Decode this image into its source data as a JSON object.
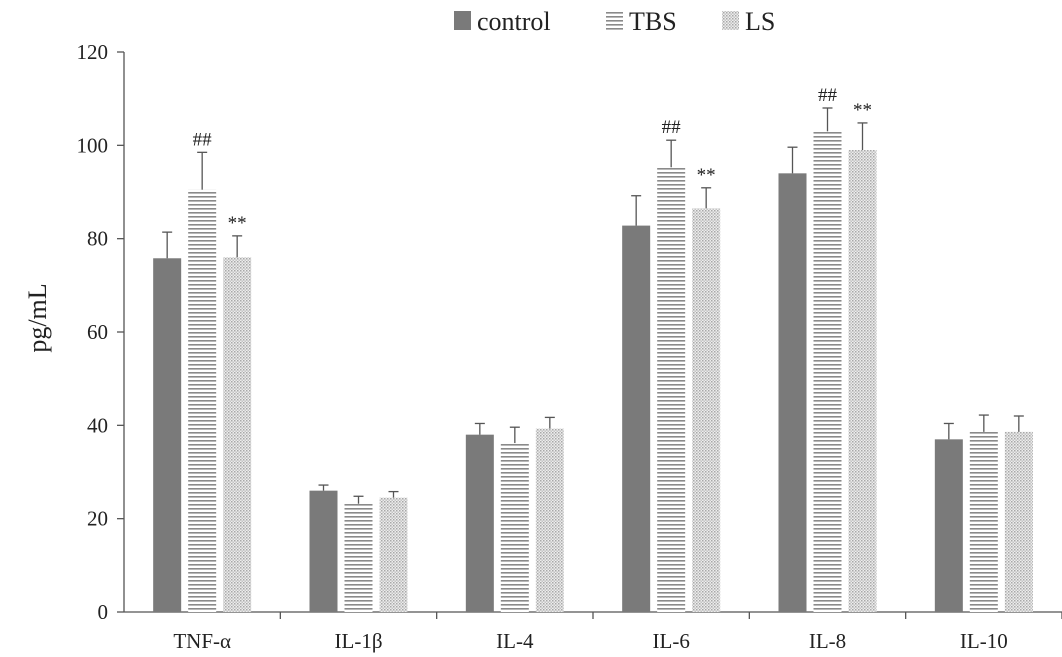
{
  "chart_data": {
    "type": "bar",
    "ylabel": "pg/mL",
    "ylim": [
      0,
      120
    ],
    "yticks": [
      0,
      20,
      40,
      60,
      80,
      100,
      120
    ],
    "categories": [
      "TNF-α",
      "IL-1β",
      "IL-4",
      "IL-6",
      "IL-8",
      "IL-10"
    ],
    "legend_position": "top-center",
    "grid": false,
    "series": [
      {
        "name": "control",
        "pattern": "solid",
        "color": "#7a7a7a",
        "values": [
          75.8,
          26.0,
          38.0,
          82.8,
          94.0,
          37.0
        ],
        "errors": [
          5.6,
          1.2,
          2.4,
          6.4,
          5.6,
          3.4
        ],
        "annotations": [
          "",
          "",
          "",
          "",
          "",
          ""
        ]
      },
      {
        "name": "TBS",
        "pattern": "horizontal-lines",
        "color": "#8a8a8a",
        "values": [
          90.5,
          23.2,
          36.2,
          95.3,
          103.0,
          38.6
        ],
        "errors": [
          8.0,
          1.6,
          3.4,
          5.8,
          5.0,
          3.6
        ],
        "annotations": [
          "##",
          "",
          "",
          "##",
          "##",
          ""
        ]
      },
      {
        "name": "LS",
        "pattern": "dots",
        "color": "#b0b0b0",
        "values": [
          76.0,
          24.5,
          39.3,
          86.5,
          99.0,
          38.6
        ],
        "errors": [
          4.6,
          1.3,
          2.4,
          4.4,
          5.8,
          3.4
        ],
        "annotations": [
          "**",
          "",
          "",
          "**",
          "**",
          ""
        ]
      }
    ]
  }
}
